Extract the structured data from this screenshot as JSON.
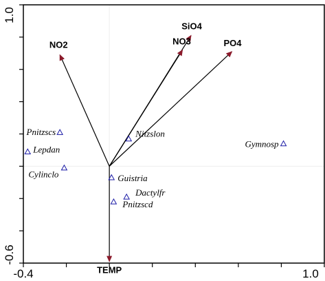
{
  "chart_data": {
    "type": "scatter",
    "title": "",
    "xlabel": "",
    "ylabel": "",
    "xlim": [
      -0.4,
      1.0
    ],
    "ylim": [
      -0.6,
      1.0
    ],
    "x_tick_labels": [
      "-0.4",
      "1.0"
    ],
    "y_tick_labels": [
      "-0.6",
      "1.0"
    ],
    "origin": [
      0.0,
      0.0
    ],
    "colors": {
      "arrow": "#8b1a2b",
      "arrow_line": "#000000",
      "marker": "#1a1aa6",
      "crosshair": "#eeeeee",
      "frame": "#000000"
    },
    "series": [
      {
        "kind": "environmental-variable-arrows",
        "points": [
          {
            "label": "NO2",
            "x": -0.23,
            "y": 0.69
          },
          {
            "label": "SiO4",
            "x": 0.38,
            "y": 0.81
          },
          {
            "label": "NO3",
            "x": 0.34,
            "y": 0.72
          },
          {
            "label": "PO4",
            "x": 0.57,
            "y": 0.71
          },
          {
            "label": "TEMP",
            "x": 0.0,
            "y": -0.59
          }
        ]
      },
      {
        "kind": "species-points",
        "points": [
          {
            "label": "Pnitzscs",
            "x": -0.23,
            "y": 0.21
          },
          {
            "label": "Lepdan",
            "x": -0.38,
            "y": 0.09
          },
          {
            "label": "Cylinclo",
            "x": -0.21,
            "y": -0.01
          },
          {
            "label": "Nitzslon",
            "x": 0.09,
            "y": 0.17
          },
          {
            "label": "Gymnosp",
            "x": 0.81,
            "y": 0.14
          },
          {
            "label": "Guistria",
            "x": 0.01,
            "y": -0.07
          },
          {
            "label": "Dactylfr",
            "x": 0.08,
            "y": -0.19
          },
          {
            "label": "Pnitzscd",
            "x": 0.02,
            "y": -0.22
          }
        ]
      }
    ]
  }
}
